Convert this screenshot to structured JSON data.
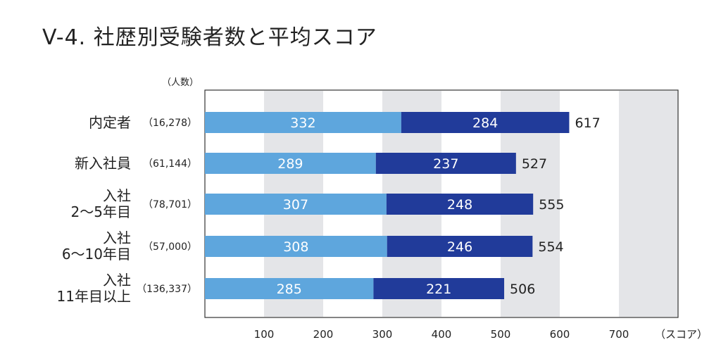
{
  "title": "V-4. 社歴別受験者数と平均スコア",
  "chart_data": {
    "type": "bar",
    "stacked": true,
    "orientation": "horizontal",
    "title": "V-4. 社歴別受験者数と平均スコア",
    "count_header": "（人数）",
    "xlabel": "（スコア）",
    "xlim": [
      0,
      800
    ],
    "xticks": [
      100,
      200,
      300,
      400,
      500,
      600,
      700
    ],
    "categories": [
      {
        "name_lines": [
          "内定者"
        ],
        "count": "（16,278）"
      },
      {
        "name_lines": [
          "新入社員"
        ],
        "count": "（61,144）"
      },
      {
        "name_lines": [
          "入社",
          "2～5年目"
        ],
        "count": "（78,701）"
      },
      {
        "name_lines": [
          "入社",
          "6～10年目"
        ],
        "count": "（57,000）"
      },
      {
        "name_lines": [
          "入社",
          "11年目以上"
        ],
        "count": "（136,337）"
      }
    ],
    "series": [
      {
        "values": [
          332,
          289,
          307,
          308,
          285
        ],
        "color": "#5ea6dd"
      },
      {
        "values": [
          284,
          237,
          248,
          246,
          221
        ],
        "color": "#213b9a"
      }
    ],
    "totals": [
      617,
      527,
      555,
      554,
      506
    ],
    "grid_band_color": "#e4e5e8"
  }
}
